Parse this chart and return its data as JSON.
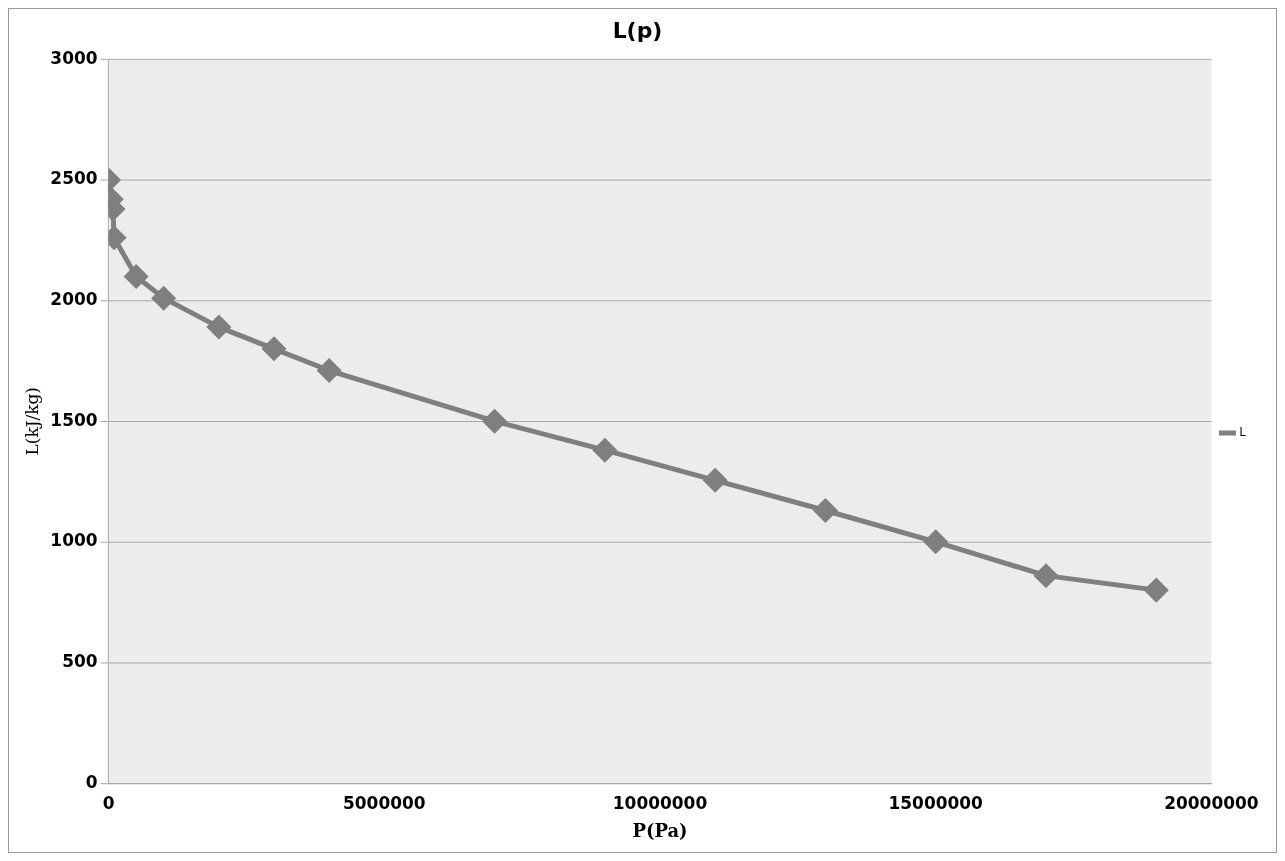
{
  "chart_data": {
    "type": "line",
    "title": "L(p)",
    "xlabel": "P(Pa)",
    "ylabel": "L(kJ/kg)",
    "x": [
      0,
      50000,
      80000,
      100000,
      500000,
      1000000,
      2000000,
      3000000,
      4000000,
      7000000,
      9000000,
      11000000,
      13000000,
      15000000,
      17000000,
      19000000
    ],
    "series": [
      {
        "name": "L",
        "color": "#7f7f7f",
        "values": [
          2500,
          2420,
          2380,
          2260,
          2100,
          2010,
          1890,
          1800,
          1710,
          1500,
          1380,
          1255,
          1130,
          1000,
          860,
          800
        ]
      }
    ],
    "xlim": [
      0,
      20000000
    ],
    "xticks": [
      0,
      5000000,
      10000000,
      15000000,
      20000000
    ],
    "ylim": [
      0,
      3000
    ],
    "yticks": [
      0,
      500,
      1000,
      1500,
      2000,
      2500,
      3000
    ],
    "grid": "y",
    "legend": "right",
    "marker": "diamond",
    "line_style": "solid"
  }
}
